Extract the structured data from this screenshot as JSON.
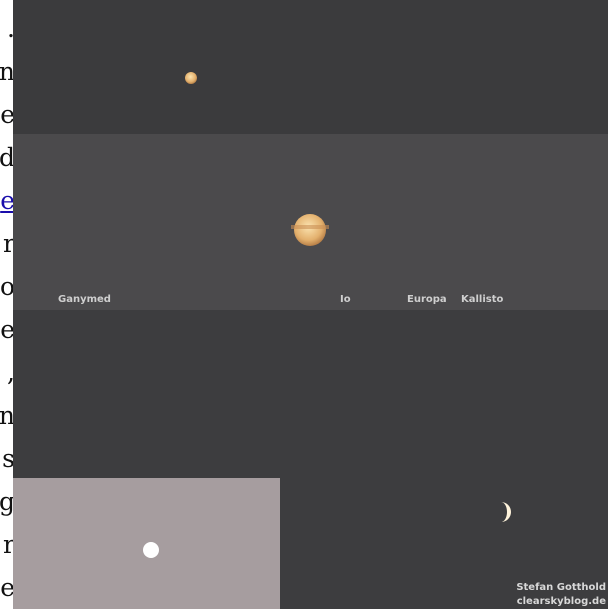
{
  "text_column": [
    ".",
    "n",
    "e",
    "d",
    "e",
    "r",
    "o",
    "e",
    ",",
    "n",
    "s",
    "g",
    "r",
    "e"
  ],
  "photo": {
    "labels": [
      "Ganymed",
      "Io",
      "Europa",
      "Kallisto"
    ],
    "credit": [
      "Stefan Gotthold",
      "clearskyblog.de"
    ]
  }
}
